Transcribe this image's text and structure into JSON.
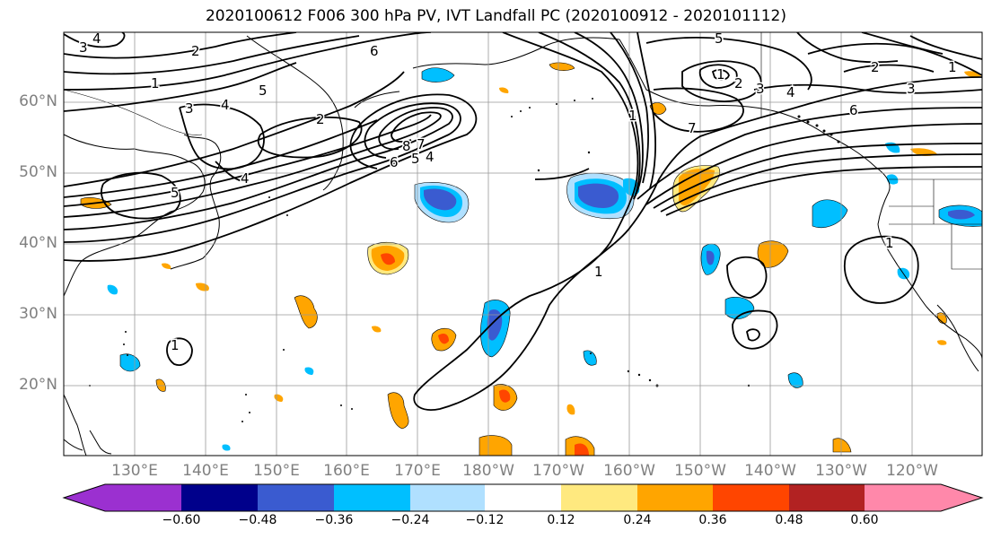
{
  "title": "2020100612 F006 300 hPa PV, IVT Landfall PC (2020100912 - 2020101112)",
  "latitude_labels": [
    "60°N",
    "50°N",
    "40°N",
    "30°N",
    "20°N"
  ],
  "longitude_labels": [
    "130°E",
    "140°E",
    "150°E",
    "160°E",
    "170°E",
    "180°W",
    "170°W",
    "160°W",
    "150°W",
    "140°W",
    "130°W",
    "120°W"
  ],
  "colorbar": {
    "ticks": [
      "−0.60",
      "−0.48",
      "−0.36",
      "−0.24",
      "−0.12",
      "0.12",
      "0.24",
      "0.36",
      "0.48",
      "0.60"
    ],
    "colors": [
      "#9b30d0",
      "#00008b",
      "#3a5bd0",
      "#00bfff",
      "#b0e0ff",
      "#ffffff",
      "#ffe97f",
      "#ffa500",
      "#ff4500",
      "#b22222",
      "#ff88aa"
    ]
  },
  "contour_labels": {
    "top_left_3": "3",
    "top_left_4": "4",
    "top_left_2": "2",
    "nw_1": "1",
    "nw_5": "5",
    "nw_4a": "4",
    "nw_3": "3",
    "nw_6": "6",
    "nw_2": "2",
    "jet_6": "6",
    "jet_8": "8",
    "jet_7": "7",
    "jet_5": "5",
    "jet_4": "4",
    "japan_5": "5",
    "japan_4": "4",
    "east_5": "5",
    "east_1": "1",
    "east_2": "2",
    "east_3": "3",
    "east_4": "4",
    "east_6": "6",
    "east_7": "7",
    "ne_2": "2",
    "ne_1": "1",
    "ne_3": "3",
    "mid_1": "1",
    "west_1": "1",
    "cal_1": "1",
    "center_1": "1"
  }
}
